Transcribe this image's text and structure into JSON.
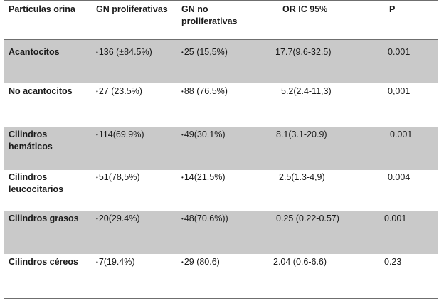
{
  "table": {
    "headers": [
      "Partículas orina",
      "GN  proliferativas",
      "GN no proliferativas",
      "OR   IC 95%",
      "P"
    ],
    "rows": [
      {
        "label": "Acantocitos",
        "gn_prolif": "136 (±84.5%)",
        "gn_no_prolif": "25 (15,5%)",
        "or_ic": "17.7(9.6-32.5)",
        "p": "0.001",
        "shaded": true
      },
      {
        "label": "No acantocitos",
        "gn_prolif": "27 (23.5%)",
        "gn_no_prolif": "88 (76.5%)",
        "or_ic": "5.2(2.4-11,3)",
        "p": "0,001",
        "shaded": false
      },
      {
        "label": "Cilindros hemáticos",
        "gn_prolif": "114(69.9%)",
        "gn_no_prolif": "49(30.1%)",
        "or_ic": "8.1(3.1-20.9)",
        "p": "0.001",
        "shaded": true
      },
      {
        "label": "Cilindros leucocitarios",
        "gn_prolif": "51(78,5%)",
        "gn_no_prolif": "14(21.5%)",
        "or_ic": "2.5(1.3-4,9)",
        "p": "0.004",
        "shaded": false
      },
      {
        "label": "Cilindros  grasos",
        "gn_prolif": "20(29.4%)",
        "gn_no_prolif": "48(70.6%))",
        "or_ic": "0.25 (0.22-0.57)",
        "p": "0.001",
        "shaded": true
      },
      {
        "label": "Cilindros céreos",
        "gn_prolif": "7(19.4%)",
        "gn_no_prolif": "29 (80.6)",
        "or_ic": "2.04 (0.6-6.6)",
        "p": "0.23",
        "shaded": false
      }
    ]
  },
  "colors": {
    "shade": "#c9c9c9",
    "rule": "#6f6f6f",
    "text": "#1a1a1a"
  }
}
